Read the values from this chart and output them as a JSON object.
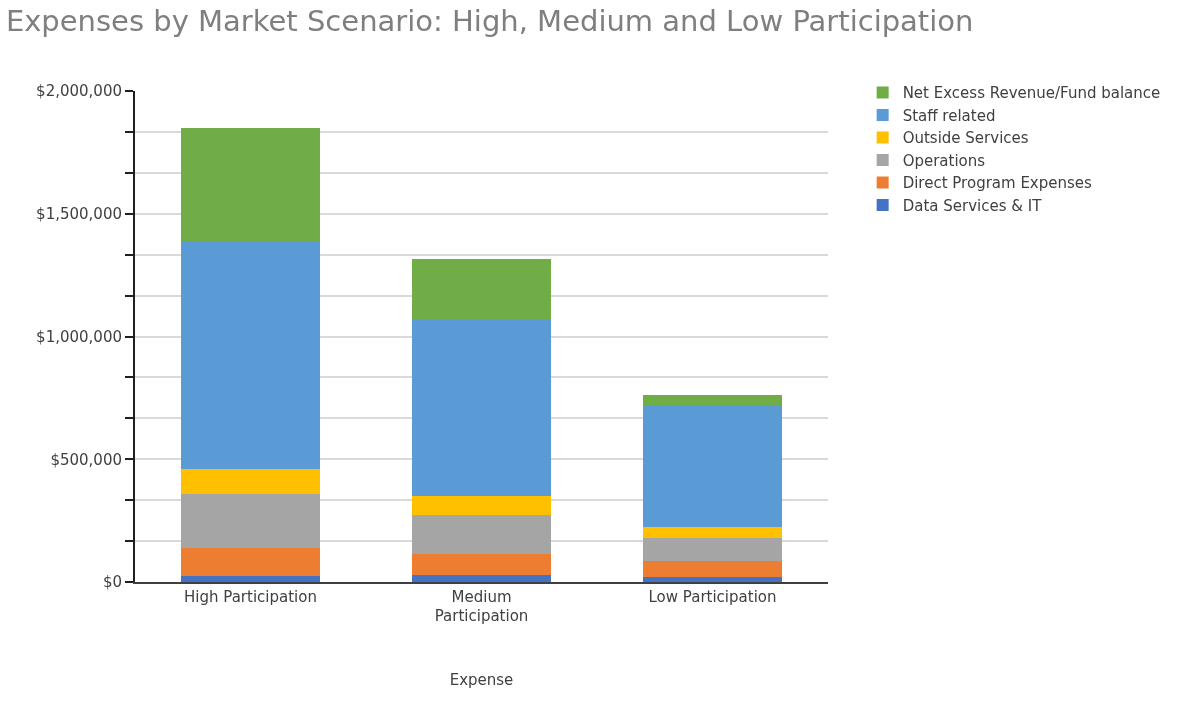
{
  "chart_data": {
    "type": "bar",
    "stacked": true,
    "title": "Expenses by Market Scenario: High, Medium and Low Participation",
    "xlabel": "Expense",
    "categories": [
      "High Participation",
      "Medium Participation",
      "Low Participation"
    ],
    "series": [
      {
        "name": "Data Services & IT",
        "color": "#4472c4",
        "values": [
          26000,
          27000,
          19000
        ]
      },
      {
        "name": "Direct Program Expenses",
        "color": "#ed7d31",
        "values": [
          111000,
          86000,
          66000
        ]
      },
      {
        "name": "Operations",
        "color": "#a5a5a5",
        "values": [
          220000,
          160000,
          95000
        ]
      },
      {
        "name": "Outside Services",
        "color": "#ffc000",
        "values": [
          102000,
          77000,
          43000
        ]
      },
      {
        "name": "Staff related",
        "color": "#5b9bd5",
        "values": [
          925000,
          720000,
          498000
        ]
      },
      {
        "name": "Net Excess Revenue/Fund balance",
        "color": "#70ad47",
        "values": [
          464000,
          244000,
          41000
        ]
      }
    ],
    "ylim": [
      0,
      2000000
    ],
    "yticks": [
      {
        "value": 0,
        "label": "$0"
      },
      {
        "value": 166667,
        "label": null
      },
      {
        "value": 333333,
        "label": null
      },
      {
        "value": 500000,
        "label": "$500,000"
      },
      {
        "value": 666667,
        "label": null
      },
      {
        "value": 833333,
        "label": null
      },
      {
        "value": 1000000,
        "label": "$1,000,000"
      },
      {
        "value": 1166667,
        "label": null
      },
      {
        "value": 1333333,
        "label": null
      },
      {
        "value": 1500000,
        "label": "$1,500,000"
      },
      {
        "value": 1666667,
        "label": null
      },
      {
        "value": 1833333,
        "label": null
      },
      {
        "value": 2000000,
        "label": "$2,000,000"
      }
    ],
    "grid": "y",
    "legend": "top right"
  }
}
